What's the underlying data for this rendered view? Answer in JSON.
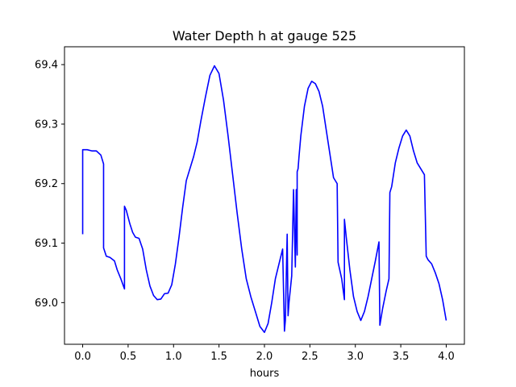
{
  "chart_data": {
    "type": "line",
    "title": "Water Depth h at gauge 525",
    "xlabel": "hours",
    "ylabel": "",
    "xlim": [
      -0.2,
      4.2
    ],
    "ylim": [
      68.93,
      69.43
    ],
    "xticks": [
      0.0,
      0.5,
      1.0,
      1.5,
      2.0,
      2.5,
      3.0,
      3.5,
      4.0
    ],
    "xtick_labels": [
      "0.0",
      "0.5",
      "1.0",
      "1.5",
      "2.0",
      "2.5",
      "3.0",
      "3.5",
      "4.0"
    ],
    "yticks": [
      69.0,
      69.1,
      69.2,
      69.3,
      69.4
    ],
    "ytick_labels": [
      "69.0",
      "69.1",
      "69.2",
      "69.3",
      "69.4"
    ],
    "grid": false,
    "line_color": "#0000ff",
    "series": [
      {
        "x": [
          0.0,
          0.0,
          0.05,
          0.1,
          0.15,
          0.2,
          0.23,
          0.23,
          0.26,
          0.3,
          0.35,
          0.38,
          0.42,
          0.46,
          0.46,
          0.48,
          0.52,
          0.55,
          0.58,
          0.62,
          0.66,
          0.7,
          0.74,
          0.78,
          0.82,
          0.86,
          0.9,
          0.94,
          0.98,
          1.02,
          1.06,
          1.1,
          1.14,
          1.18,
          1.22,
          1.26,
          1.3,
          1.35,
          1.4,
          1.45,
          1.5,
          1.55,
          1.6,
          1.65,
          1.7,
          1.75,
          1.8,
          1.85,
          1.9,
          1.95,
          2.0,
          2.04,
          2.08,
          2.12,
          2.16,
          2.2,
          2.22,
          2.23,
          2.25,
          2.26,
          2.27,
          2.28,
          2.3,
          2.32,
          2.34,
          2.35,
          2.36,
          2.36,
          2.37,
          2.38,
          2.4,
          2.44,
          2.48,
          2.52,
          2.56,
          2.6,
          2.64,
          2.68,
          2.72,
          2.76,
          2.8,
          2.81,
          2.85,
          2.88,
          2.88,
          2.9,
          2.94,
          2.98,
          3.02,
          3.06,
          3.1,
          3.14,
          3.18,
          3.22,
          3.26,
          3.27,
          3.3,
          3.34,
          3.37,
          3.38,
          3.4,
          3.44,
          3.48,
          3.52,
          3.56,
          3.6,
          3.64,
          3.68,
          3.72,
          3.76,
          3.78,
          3.8,
          3.84,
          3.88,
          3.92,
          3.96,
          4.0
        ],
        "values": [
          69.115,
          69.257,
          69.257,
          69.255,
          69.255,
          69.248,
          69.233,
          69.092,
          69.078,
          69.076,
          69.07,
          69.055,
          69.04,
          69.023,
          69.162,
          69.155,
          69.132,
          69.118,
          69.11,
          69.108,
          69.09,
          69.055,
          69.028,
          69.012,
          69.005,
          69.006,
          69.015,
          69.016,
          69.03,
          69.065,
          69.11,
          69.16,
          69.205,
          69.225,
          69.245,
          69.27,
          69.305,
          69.345,
          69.382,
          69.398,
          69.385,
          69.34,
          69.28,
          69.215,
          69.15,
          69.09,
          69.04,
          69.01,
          68.985,
          68.96,
          68.95,
          68.965,
          69.0,
          69.04,
          69.065,
          69.09,
          68.952,
          68.97,
          69.115,
          68.978,
          69.0,
          69.015,
          69.045,
          69.19,
          69.06,
          69.19,
          69.08,
          69.22,
          69.225,
          69.245,
          69.28,
          69.33,
          69.36,
          69.372,
          69.368,
          69.355,
          69.33,
          69.29,
          69.25,
          69.21,
          69.2,
          69.068,
          69.04,
          69.005,
          69.14,
          69.11,
          69.055,
          69.01,
          68.985,
          68.97,
          68.985,
          69.01,
          69.04,
          69.07,
          69.102,
          68.962,
          68.99,
          69.02,
          69.04,
          69.185,
          69.195,
          69.235,
          69.26,
          69.28,
          69.29,
          69.28,
          69.255,
          69.235,
          69.225,
          69.215,
          69.078,
          69.072,
          69.065,
          69.05,
          69.032,
          69.005,
          68.97
        ]
      }
    ]
  }
}
